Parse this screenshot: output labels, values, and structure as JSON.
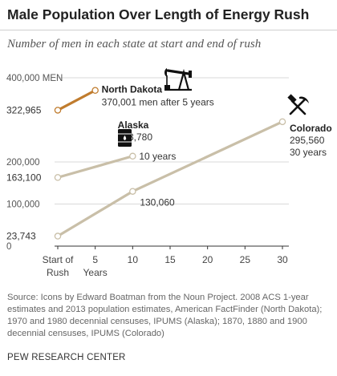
{
  "title": "Male Population Over Length of Energy Rush",
  "subtitle": "Number of men in each state at start and end of rush",
  "source": "Source: Icons by Edward Boatman from the Noun Project. 2008 ACS 1-year estimates and 2013 population estimates, American FactFinder (North Dakota); 1970 and 1980 decennial censuses, IPUMS (Alaska); 1870, 1880 and 1900 decennial censuses, IPUMS (Colorado)",
  "brand": "PEW RESEARCH CENTER",
  "colors": {
    "north_dakota": "#c07c2e",
    "other": "#c9bfa8",
    "text": "#222222",
    "grid": "#d9d9d9"
  },
  "chart_data": {
    "type": "line",
    "title": "Male Population Over Length of Energy Rush",
    "subtitle": "Number of men in each state at start and end of rush",
    "xlabel": "Years",
    "ylim": [
      0,
      400000
    ],
    "xlim": [
      0,
      30
    ],
    "y_ticks": [
      {
        "value": 0,
        "label": "0"
      },
      {
        "value": 100000,
        "label": "100,000"
      },
      {
        "value": 200000,
        "label": "200,000"
      },
      {
        "value": 400000,
        "label": "400,000 MEN"
      }
    ],
    "x_ticks": [
      {
        "value": 0,
        "label": "Start of",
        "label2": "Rush"
      },
      {
        "value": 5,
        "label": "5",
        "label2": "Years"
      },
      {
        "value": 10,
        "label": "10"
      },
      {
        "value": 15,
        "label": "15"
      },
      {
        "value": 20,
        "label": "20"
      },
      {
        "value": 25,
        "label": "25"
      },
      {
        "value": 30,
        "label": "30"
      }
    ],
    "series": [
      {
        "name": "North Dakota",
        "color": "#c07c2e",
        "icon": "oil-pump-icon",
        "points": [
          {
            "x": 0,
            "y": 322965,
            "label": "322,965"
          },
          {
            "x": 5,
            "y": 370001
          }
        ],
        "end_label": "370,001 men after 5 years"
      },
      {
        "name": "Alaska",
        "color": "#c9bfa8",
        "icon": "oil-barrel-icon",
        "points": [
          {
            "x": 0,
            "y": 163100,
            "label": "163,100"
          },
          {
            "x": 10,
            "y": 213780
          }
        ],
        "end_label": "213,780",
        "end_label2": "10 years"
      },
      {
        "name": "Colorado",
        "color": "#c9bfa8",
        "icon": "pickaxe-hammer-icon",
        "points": [
          {
            "x": 0,
            "y": 23743,
            "label": "23,743"
          },
          {
            "x": 10,
            "y": 130060,
            "label": "130,060"
          },
          {
            "x": 30,
            "y": 295560
          }
        ],
        "end_label": "295,560",
        "end_label2": "30 years"
      }
    ]
  }
}
